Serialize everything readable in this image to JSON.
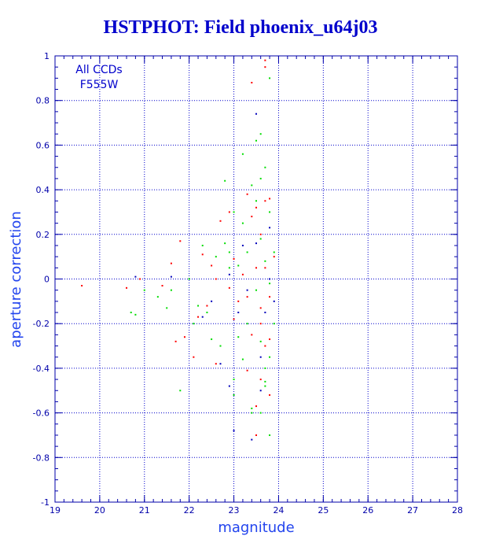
{
  "chart_data": {
    "type": "scatter",
    "title": "HSTPHOT: Field phoenix_u64j03",
    "xlabel": "magnitude",
    "ylabel": "aperture correction",
    "xlim": [
      19,
      28
    ],
    "ylim": [
      -1,
      1
    ],
    "x_ticks": [
      "19",
      "20",
      "21",
      "22",
      "23",
      "24",
      "25",
      "26",
      "27",
      "28"
    ],
    "y_ticks": [
      "1",
      "0.8",
      "0.6",
      "0.4",
      "0.2",
      "0",
      "-0.2",
      "-0.4",
      "-0.6",
      "-0.8",
      "-1"
    ],
    "grid": true,
    "annotations": [
      "All CCDs",
      "F555W"
    ],
    "colors": {
      "title": "#0000cc",
      "axes": "#0000aa",
      "grid": "#0000cc",
      "red": "#ff0000",
      "green": "#00dd00",
      "blue": "#0000bb"
    },
    "series": [
      {
        "color": "red",
        "points": [
          [
            19.6,
            -0.03
          ],
          [
            20.6,
            -0.04
          ],
          [
            20.9,
            0.0
          ],
          [
            21.7,
            -0.28
          ],
          [
            21.6,
            0.07
          ],
          [
            21.4,
            -0.03
          ],
          [
            21.8,
            0.17
          ],
          [
            21.9,
            -0.26
          ],
          [
            22.2,
            -0.17
          ],
          [
            22.3,
            0.11
          ],
          [
            22.5,
            0.06
          ],
          [
            22.6,
            0.0
          ],
          [
            22.4,
            -0.12
          ],
          [
            22.7,
            0.26
          ],
          [
            22.6,
            -0.38
          ],
          [
            22.9,
            0.3
          ],
          [
            22.9,
            -0.04
          ],
          [
            23.0,
            0.09
          ],
          [
            23.1,
            -0.1
          ],
          [
            23.2,
            0.02
          ],
          [
            23.3,
            -0.08
          ],
          [
            23.3,
            -0.41
          ],
          [
            23.4,
            0.88
          ],
          [
            23.4,
            0.28
          ],
          [
            23.4,
            -0.25
          ],
          [
            23.5,
            -0.57
          ],
          [
            23.5,
            0.32
          ],
          [
            23.6,
            -0.13
          ],
          [
            23.6,
            0.2
          ],
          [
            23.6,
            -0.45
          ],
          [
            23.7,
            0.98
          ],
          [
            23.7,
            0.35
          ],
          [
            23.7,
            -0.3
          ],
          [
            23.8,
            0.36
          ],
          [
            23.8,
            -0.08
          ],
          [
            23.8,
            -0.52
          ],
          [
            23.9,
            0.1
          ],
          [
            23.7,
            0.95
          ],
          [
            23.5,
            -0.7
          ],
          [
            23.6,
            -0.2
          ],
          [
            23.7,
            0.05
          ],
          [
            23.8,
            -0.27
          ],
          [
            23.3,
            0.38
          ],
          [
            23.5,
            0.05
          ],
          [
            22.1,
            -0.35
          ],
          [
            23.0,
            -0.18
          ]
        ]
      },
      {
        "color": "green",
        "points": [
          [
            20.8,
            -0.16
          ],
          [
            20.7,
            -0.15
          ],
          [
            21.0,
            -0.05
          ],
          [
            21.3,
            -0.08
          ],
          [
            21.5,
            -0.13
          ],
          [
            21.6,
            -0.05
          ],
          [
            21.8,
            -0.5
          ],
          [
            22.0,
            0.0
          ],
          [
            22.1,
            -0.2
          ],
          [
            22.2,
            -0.12
          ],
          [
            22.3,
            0.15
          ],
          [
            22.4,
            -0.15
          ],
          [
            22.5,
            -0.27
          ],
          [
            22.6,
            0.1
          ],
          [
            22.7,
            -0.3
          ],
          [
            22.8,
            0.44
          ],
          [
            22.8,
            0.16
          ],
          [
            22.9,
            0.05
          ],
          [
            23.0,
            -0.45
          ],
          [
            23.0,
            -0.52
          ],
          [
            23.1,
            -0.26
          ],
          [
            23.1,
            0.06
          ],
          [
            23.2,
            0.56
          ],
          [
            23.2,
            -0.36
          ],
          [
            23.3,
            0.12
          ],
          [
            23.3,
            -0.2
          ],
          [
            23.4,
            0.42
          ],
          [
            23.4,
            -0.6
          ],
          [
            23.5,
            0.62
          ],
          [
            23.5,
            0.35
          ],
          [
            23.5,
            -0.05
          ],
          [
            23.6,
            0.45
          ],
          [
            23.6,
            0.18
          ],
          [
            23.6,
            -0.28
          ],
          [
            23.7,
            0.5
          ],
          [
            23.7,
            0.08
          ],
          [
            23.7,
            -0.4
          ],
          [
            23.7,
            -0.46
          ],
          [
            23.8,
            0.9
          ],
          [
            23.8,
            0.3
          ],
          [
            23.8,
            -0.02
          ],
          [
            23.8,
            -0.35
          ],
          [
            23.9,
            0.12
          ],
          [
            23.9,
            -0.2
          ],
          [
            23.8,
            -0.7
          ],
          [
            23.6,
            -0.6
          ],
          [
            23.4,
            -0.58
          ],
          [
            23.2,
            0.25
          ],
          [
            23.0,
            0.3
          ],
          [
            22.9,
            0.12
          ],
          [
            23.6,
            0.65
          ],
          [
            23.7,
            -0.48
          ]
        ]
      },
      {
        "color": "blue",
        "points": [
          [
            20.8,
            0.01
          ],
          [
            21.6,
            0.01
          ],
          [
            22.3,
            -0.17
          ],
          [
            22.7,
            -0.38
          ],
          [
            22.9,
            0.02
          ],
          [
            22.9,
            -0.48
          ],
          [
            23.1,
            -0.15
          ],
          [
            23.3,
            -0.05
          ],
          [
            23.4,
            -0.72
          ],
          [
            23.5,
            0.74
          ],
          [
            23.5,
            0.16
          ],
          [
            23.6,
            -0.35
          ],
          [
            23.7,
            -0.15
          ],
          [
            23.8,
            0.0
          ],
          [
            23.8,
            0.23
          ],
          [
            23.0,
            -0.68
          ],
          [
            23.9,
            -0.1
          ],
          [
            23.6,
            -0.5
          ],
          [
            22.5,
            -0.1
          ],
          [
            23.2,
            0.15
          ]
        ]
      }
    ]
  }
}
